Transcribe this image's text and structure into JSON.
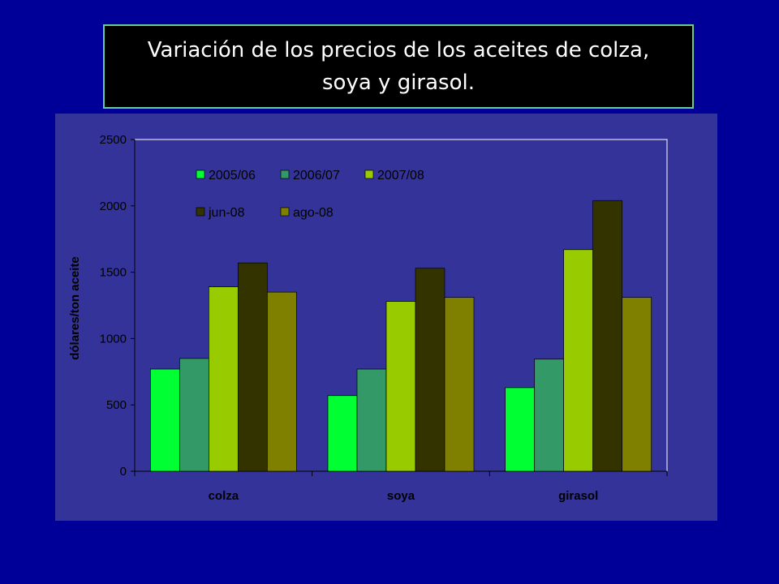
{
  "title": {
    "line1": "Variación de los precios de los aceites de colza,",
    "line2": "soya y  girasol."
  },
  "colors": {
    "background": "#000099",
    "plot_area": "#333399",
    "title_box": "#000000",
    "title_border": "#66cc99"
  },
  "chart_data": {
    "type": "bar",
    "categories": [
      "colza",
      "soya",
      "girasol"
    ],
    "series": [
      {
        "name": "2005/06",
        "color": "#00ff33",
        "values": [
          770,
          570,
          630
        ]
      },
      {
        "name": "2006/07",
        "color": "#339966",
        "values": [
          850,
          770,
          845
        ]
      },
      {
        "name": "2007/08",
        "color": "#99cc00",
        "values": [
          1390,
          1280,
          1670
        ]
      },
      {
        "name": "jun-08",
        "color": "#333300",
        "values": [
          1570,
          1530,
          2040
        ]
      },
      {
        "name": "ago-08",
        "color": "#808000",
        "values": [
          1350,
          1310,
          1310
        ]
      }
    ],
    "ylabel": "dólares/ton aceite",
    "xlabel": "",
    "ylim": [
      0,
      2500
    ],
    "yticks": [
      "0",
      "500",
      "1000",
      "1500",
      "2000",
      "2500"
    ],
    "grid": false,
    "legend_position": "top-left inside plot"
  }
}
